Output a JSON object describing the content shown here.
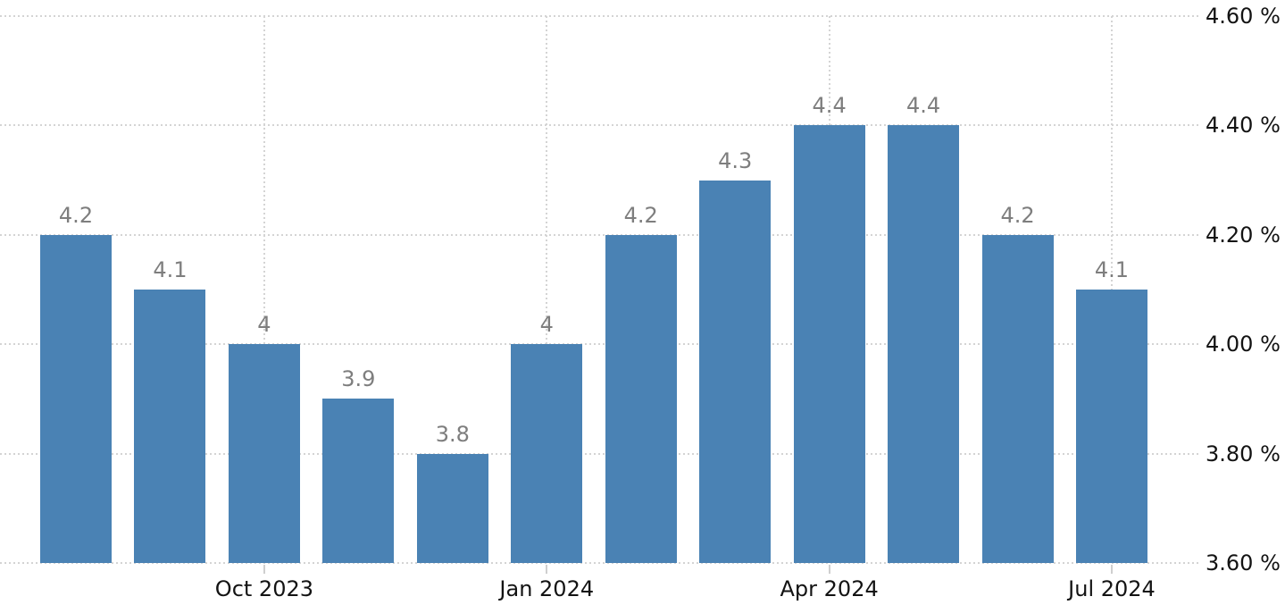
{
  "chart_data": {
    "type": "bar",
    "title": "",
    "xlabel": "",
    "ylabel": "",
    "ylim": [
      3.6,
      4.6
    ],
    "grid": true,
    "legend": false,
    "colors": {
      "bar": "#4a82b4",
      "value_label": "#7e7e7e",
      "axis_label": "#131313",
      "gridline": "#d4d4d4",
      "tick_mark": "#cfcfcf",
      "background": "#ffffff"
    },
    "bars": [
      {
        "value": 4.2,
        "label": "4.2"
      },
      {
        "value": 4.1,
        "label": "4.1"
      },
      {
        "value": 4.0,
        "label": "4"
      },
      {
        "value": 3.9,
        "label": "3.9"
      },
      {
        "value": 3.8,
        "label": "3.8"
      },
      {
        "value": 4.0,
        "label": "4"
      },
      {
        "value": 4.2,
        "label": "4.2"
      },
      {
        "value": 4.3,
        "label": "4.3"
      },
      {
        "value": 4.4,
        "label": "4.4"
      },
      {
        "value": 4.4,
        "label": "4.4"
      },
      {
        "value": 4.2,
        "label": "4.2"
      },
      {
        "value": 4.1,
        "label": "4.1"
      }
    ],
    "x_ticks": [
      {
        "bar_index": 2,
        "label": "Oct 2023"
      },
      {
        "bar_index": 5,
        "label": "Jan 2024"
      },
      {
        "bar_index": 8,
        "label": "Apr 2024"
      },
      {
        "bar_index": 11,
        "label": "Jul 2024"
      }
    ],
    "y_ticks": [
      {
        "value": 4.6,
        "label": "4.60 %"
      },
      {
        "value": 4.4,
        "label": "4.40 %"
      },
      {
        "value": 4.2,
        "label": "4.20 %"
      },
      {
        "value": 4.0,
        "label": "4.00 %"
      },
      {
        "value": 3.8,
        "label": "3.80 %"
      },
      {
        "value": 3.6,
        "label": "3.60 %"
      }
    ]
  }
}
